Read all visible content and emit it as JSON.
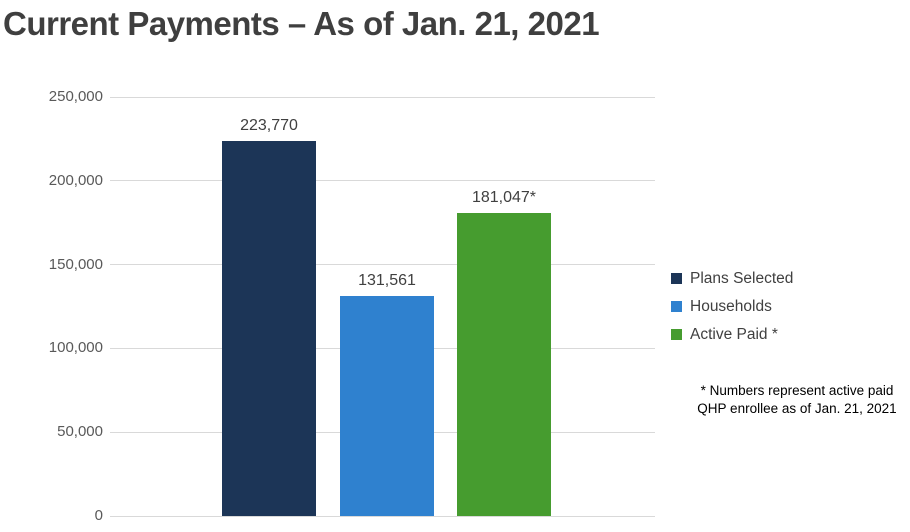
{
  "title": "Current Payments – As of Jan. 21, 2021",
  "chart_data": {
    "type": "bar",
    "title": "Current Payments – As of Jan. 21, 2021",
    "categories": [
      "Plans Selected",
      "Households",
      "Active Paid *"
    ],
    "values": [
      223770,
      131561,
      181047
    ],
    "value_labels": [
      "223,770",
      "131,561",
      "181,047*"
    ],
    "bar_colors": [
      "#1C3557",
      "#2F81CF",
      "#469C2F"
    ],
    "xlabel": "",
    "ylabel": "",
    "ylim": [
      0,
      250000
    ],
    "yticks": [
      0,
      50000,
      100000,
      150000,
      200000,
      250000
    ],
    "ytick_labels": [
      "0",
      "50,000",
      "100,000",
      "150,000",
      "200,000",
      "250,000"
    ],
    "grid": true,
    "legend_position": "right"
  },
  "legend": {
    "items": [
      {
        "label": "Plans Selected",
        "color": "#1C3557"
      },
      {
        "label": "Households",
        "color": "#2F81CF"
      },
      {
        "label": "Active Paid *",
        "color": "#469C2F"
      }
    ]
  },
  "footnote": {
    "line1": "* Numbers represent active paid",
    "line2": "QHP enrollee as of Jan. 21, 2021"
  },
  "colors": {
    "title_text": "#3F3F3F",
    "axis_text": "#595959",
    "value_label_text": "#404040",
    "legend_text": "#404040",
    "footnote_text": "#000000",
    "gridline": "#D9D9D9",
    "background": "#FFFFFF"
  }
}
